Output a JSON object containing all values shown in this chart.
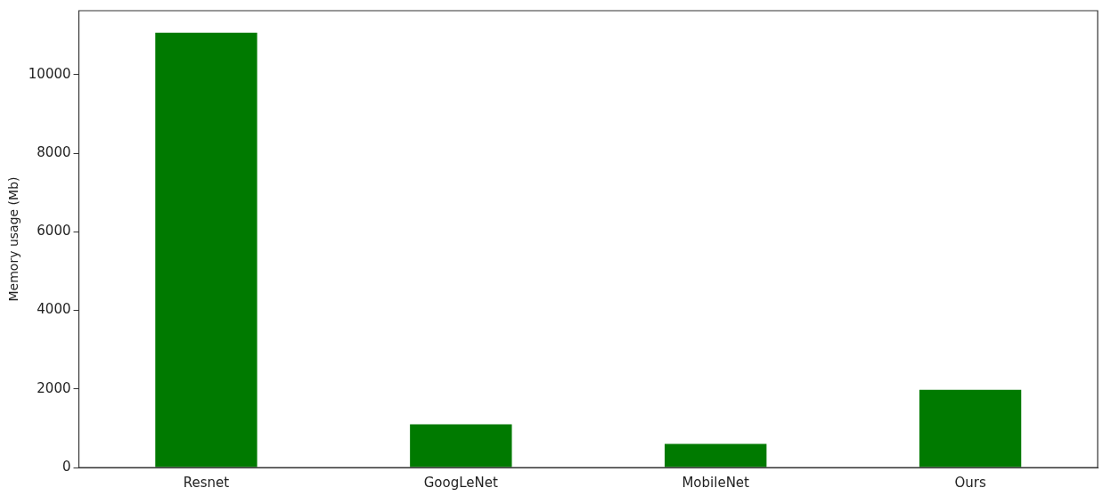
{
  "chart_data": {
    "type": "bar",
    "ylabel": "Memory usage (Mb)",
    "categories": [
      "Resnet",
      "GoogLeNet",
      "MobileNet",
      "Ours"
    ],
    "values": [
      11070,
      1100,
      600,
      1980
    ],
    "color": "#007a00",
    "ylim": [
      0,
      11630
    ],
    "yticks": [
      0,
      2000,
      4000,
      6000,
      8000,
      10000
    ],
    "grid": false,
    "legend": false
  }
}
